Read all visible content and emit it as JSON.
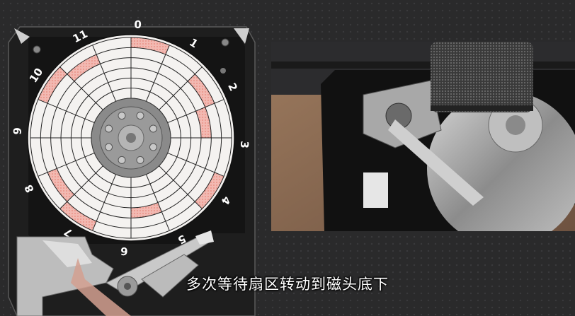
{
  "subtitle": "多次等待扇区转动到磁头底下",
  "dial_numbers": [
    "0",
    "1",
    "2",
    "3",
    "4",
    "5",
    "6",
    "7",
    "8",
    "9",
    "10",
    "11"
  ],
  "colors": {
    "platter": "#f4f2f0",
    "highlight_sector": "#f2b9b2",
    "highlight_dots": "#e8877c",
    "drive_body": "#222222",
    "spindle": "#9a9a9a"
  },
  "platter": {
    "tracks": 6,
    "sectors": 16,
    "highlighted": [
      [
        5,
        0
      ],
      [
        5,
        13
      ],
      [
        4,
        2
      ],
      [
        4,
        14
      ],
      [
        3,
        3
      ],
      [
        4,
        10
      ],
      [
        5,
        9
      ],
      [
        3,
        7
      ],
      [
        5,
        5
      ]
    ]
  }
}
